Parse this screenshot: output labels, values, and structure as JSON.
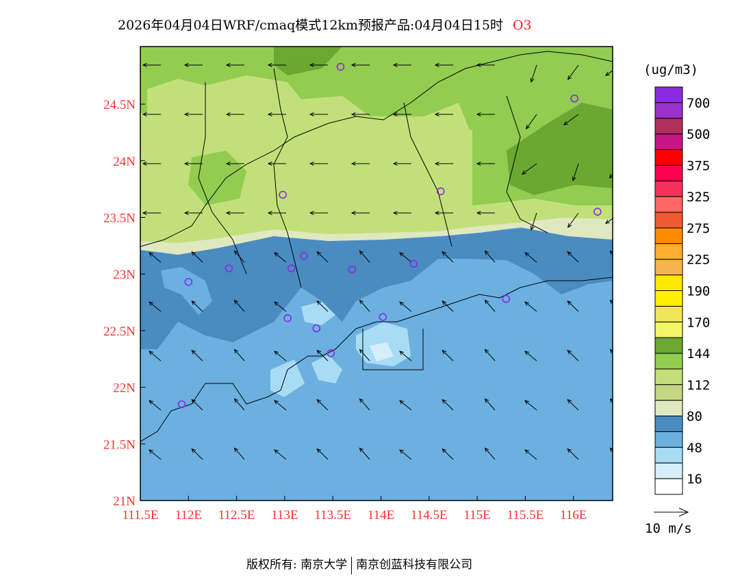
{
  "title": {
    "text": "2026年04月04日WRF/cmaq模式12km预报产品:04月04日15时",
    "species": "O3"
  },
  "colorbar": {
    "unit": "(ug/m3)",
    "colors": [
      "#8a2be2",
      "#9932cc",
      "#b03060",
      "#c71585",
      "#ff0000",
      "#ff0050",
      "#f5315a",
      "#ff6666",
      "#f05a30",
      "#ff8c00",
      "#ffb030",
      "#f5b44e",
      "#ffe800",
      "#fff000",
      "#f2e65a",
      "#f2f56a",
      "#6aa832",
      "#92cc50",
      "#c2e07a",
      "#c2d882",
      "#e0e8c0",
      "#4a8cc0",
      "#6cb0e0",
      "#a8dcf5",
      "#d6eefa",
      "#ffffff"
    ],
    "labels": [
      "700",
      "500",
      "375",
      "325",
      "275",
      "225",
      "190",
      "170",
      "144",
      "112",
      "80",
      "48",
      "16"
    ]
  },
  "wind_legend": "10 m/s",
  "axes": {
    "x_ticks": [
      "111.5E",
      "112E",
      "112.5E",
      "113E",
      "113.5E",
      "114E",
      "114.5E",
      "115E",
      "115.5E",
      "116E"
    ],
    "x_values": [
      111.5,
      112,
      112.5,
      113,
      113.5,
      114,
      114.5,
      115,
      115.5,
      116
    ],
    "y_ticks": [
      "21N",
      "21.5N",
      "22N",
      "22.5N",
      "23N",
      "23.5N",
      "24N",
      "24.5N"
    ],
    "y_values": [
      21,
      21.5,
      22,
      22.5,
      23,
      23.5,
      24,
      24.5
    ],
    "lon_range": [
      111.5,
      116.4
    ],
    "lat_range": [
      21,
      25.01
    ]
  },
  "stations": [
    [
      113.58,
      24.83
    ],
    [
      116.01,
      24.55
    ],
    [
      112.98,
      23.7
    ],
    [
      114.62,
      23.73
    ],
    [
      116.25,
      23.55
    ],
    [
      112.42,
      23.05
    ],
    [
      112.0,
      22.93
    ],
    [
      113.2,
      23.16
    ],
    [
      113.07,
      23.05
    ],
    [
      113.7,
      23.04
    ],
    [
      114.34,
      23.09
    ],
    [
      115.3,
      22.78
    ],
    [
      113.03,
      22.61
    ],
    [
      114.02,
      22.62
    ],
    [
      113.33,
      22.52
    ],
    [
      113.48,
      22.3
    ],
    [
      111.93,
      21.85
    ]
  ],
  "footer": {
    "left": "版权所有: 南京大学",
    "right": "南京创蓝科技有限公司"
  }
}
